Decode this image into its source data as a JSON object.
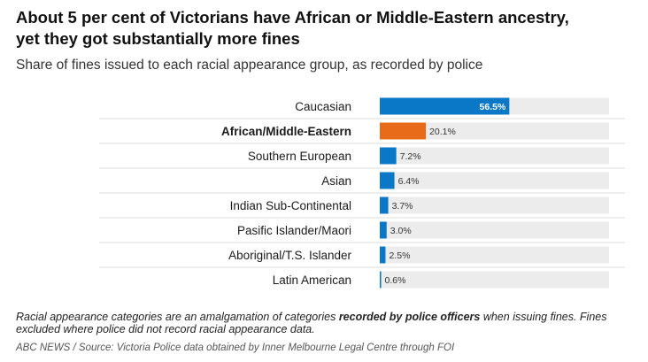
{
  "title_line1": "About 5 per cent of Victorians have African or Middle-Eastern ancestry,",
  "title_line2": "yet they got substantially more fines",
  "subtitle": "Share of fines issued to each racial appearance group, as recorded by police",
  "note": {
    "part1": "Racial appearance categories are an amalgamation of categories ",
    "bold": "recorded by police officers",
    "part2": " when issuing fines. Fines excluded where police did not record racial appearance data."
  },
  "source": "ABC NEWS / Source: Victoria Police data obtained by Inner Melbourne Legal Centre through FOI",
  "chart_data": {
    "type": "bar",
    "orientation": "horizontal",
    "categories": [
      "Caucasian",
      "African/Middle-Eastern",
      "Southern European",
      "Asian",
      "Indian Sub-Continental",
      "Pasific Islander/Maori",
      "Aboriginal/T.S. Islander",
      "Latin American"
    ],
    "values": [
      56.5,
      20.1,
      7.2,
      6.4,
      3.7,
      3.0,
      2.5,
      0.6
    ],
    "value_labels": [
      "56.5%",
      "20.1%",
      "7.2%",
      "6.4%",
      "3.7%",
      "3.0%",
      "2.5%",
      "0.6%"
    ],
    "highlight_category": "African/Middle-Eastern",
    "xlim": [
      0,
      100
    ],
    "unit": "%",
    "colors": {
      "default": "#0a77c7",
      "highlight": "#e86b1a",
      "track": "#ececec",
      "divider": "#dcdcdc"
    }
  }
}
